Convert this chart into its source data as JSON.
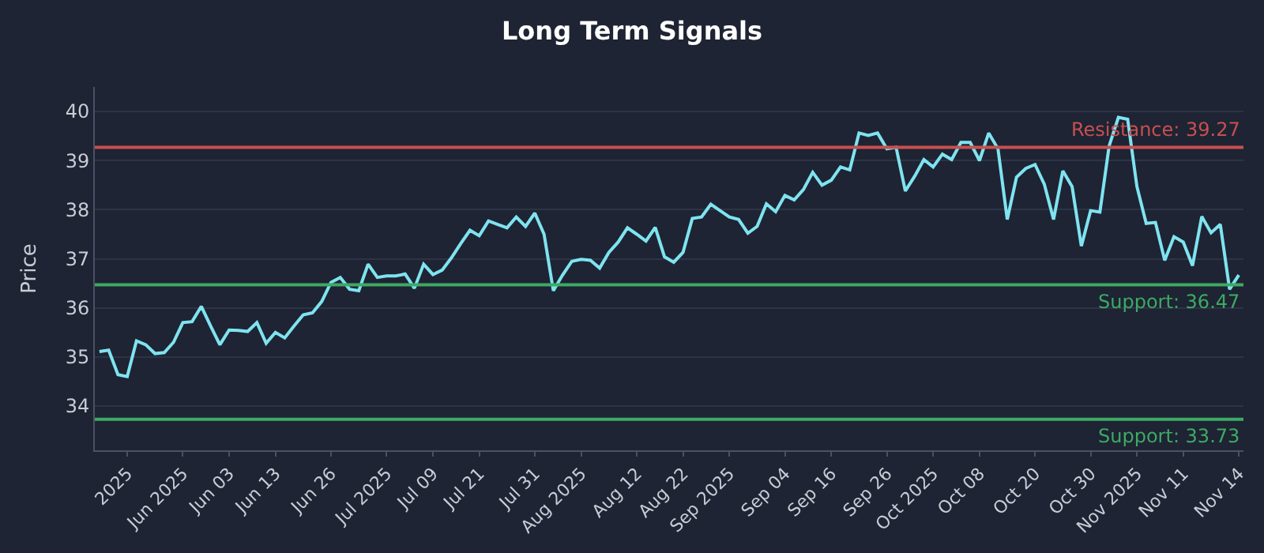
{
  "chart_data": {
    "type": "line",
    "title": "Long Term Signals",
    "ylabel": "Price",
    "categories": [
      null,
      null,
      null,
      "2025",
      null,
      null,
      null,
      null,
      null,
      "Jun 2025",
      null,
      null,
      null,
      null,
      "Jun 03",
      null,
      null,
      null,
      null,
      "Jun 13",
      null,
      null,
      null,
      null,
      null,
      "Jun 26",
      null,
      null,
      null,
      null,
      null,
      "Jul 2025",
      null,
      null,
      null,
      null,
      "Jul 09",
      null,
      null,
      null,
      null,
      "Jul 21",
      null,
      null,
      null,
      null,
      null,
      "Jul 31",
      null,
      null,
      null,
      null,
      "Aug 2025",
      null,
      null,
      null,
      null,
      null,
      "Aug 12",
      null,
      null,
      null,
      null,
      "Aug 22",
      null,
      null,
      null,
      null,
      "Sep 2025",
      null,
      null,
      null,
      null,
      null,
      "Sep 04",
      null,
      null,
      null,
      null,
      "Sep 16",
      null,
      null,
      null,
      null,
      null,
      "Sep 26",
      null,
      null,
      null,
      null,
      "Oct 2025",
      null,
      null,
      null,
      null,
      "Oct 08",
      null,
      null,
      null,
      null,
      null,
      "Oct 20",
      null,
      null,
      null,
      null,
      null,
      "Oct 30",
      null,
      null,
      null,
      null,
      "Nov 2025",
      null,
      null,
      null,
      null,
      "Nov 11",
      null,
      null,
      null,
      null,
      null,
      "Nov 14"
    ],
    "series": [
      {
        "color": "#7fe3f0",
        "values": [
          35.11,
          35.14,
          34.64,
          34.6,
          35.33,
          35.25,
          35.07,
          35.09,
          35.3,
          35.7,
          35.72,
          36.03,
          35.63,
          35.25,
          35.55,
          35.54,
          35.52,
          35.7,
          35.28,
          35.5,
          35.39,
          35.63,
          35.86,
          35.9,
          36.13,
          36.52,
          36.62,
          36.38,
          36.35,
          36.89,
          36.62,
          36.65,
          36.65,
          36.69,
          36.4,
          36.89,
          36.68,
          36.77,
          37.02,
          37.31,
          37.58,
          37.47,
          37.77,
          37.7,
          37.63,
          37.85,
          37.66,
          37.93,
          37.5,
          36.35,
          36.67,
          36.95,
          36.99,
          36.97,
          36.81,
          37.13,
          37.34,
          37.63,
          37.5,
          37.36,
          37.64,
          37.04,
          36.93,
          37.13,
          37.82,
          37.85,
          38.11,
          37.98,
          37.85,
          37.8,
          37.52,
          37.66,
          38.12,
          37.96,
          38.29,
          38.2,
          38.41,
          38.76,
          38.5,
          38.6,
          38.87,
          38.81,
          39.56,
          39.51,
          39.56,
          39.24,
          39.27,
          38.38,
          38.68,
          39.02,
          38.87,
          39.13,
          39.02,
          39.37,
          39.37,
          39.0,
          39.56,
          39.24,
          37.8,
          38.66,
          38.84,
          38.92,
          38.52,
          37.8,
          38.79,
          38.47,
          37.26,
          37.98,
          37.95,
          39.3,
          39.88,
          39.84,
          38.47,
          37.72,
          37.74,
          36.97,
          37.45,
          37.34,
          36.86,
          37.86,
          37.53,
          37.7,
          36.38,
          36.67
        ]
      }
    ],
    "ylim": [
      33.1,
      40.5
    ],
    "yticks": [
      34,
      35,
      36,
      37,
      38,
      39,
      40
    ],
    "grid": "y",
    "ref_lines": [
      {
        "axis": "y",
        "value": 39.27,
        "label": "Resistance: 39.27",
        "color": "#c94f4f"
      },
      {
        "axis": "y",
        "value": 36.47,
        "label": "Support: 36.47",
        "color": "#3daa64"
      },
      {
        "axis": "y",
        "value": 33.73,
        "label": "Support: 33.73",
        "color": "#3daa64"
      }
    ]
  }
}
